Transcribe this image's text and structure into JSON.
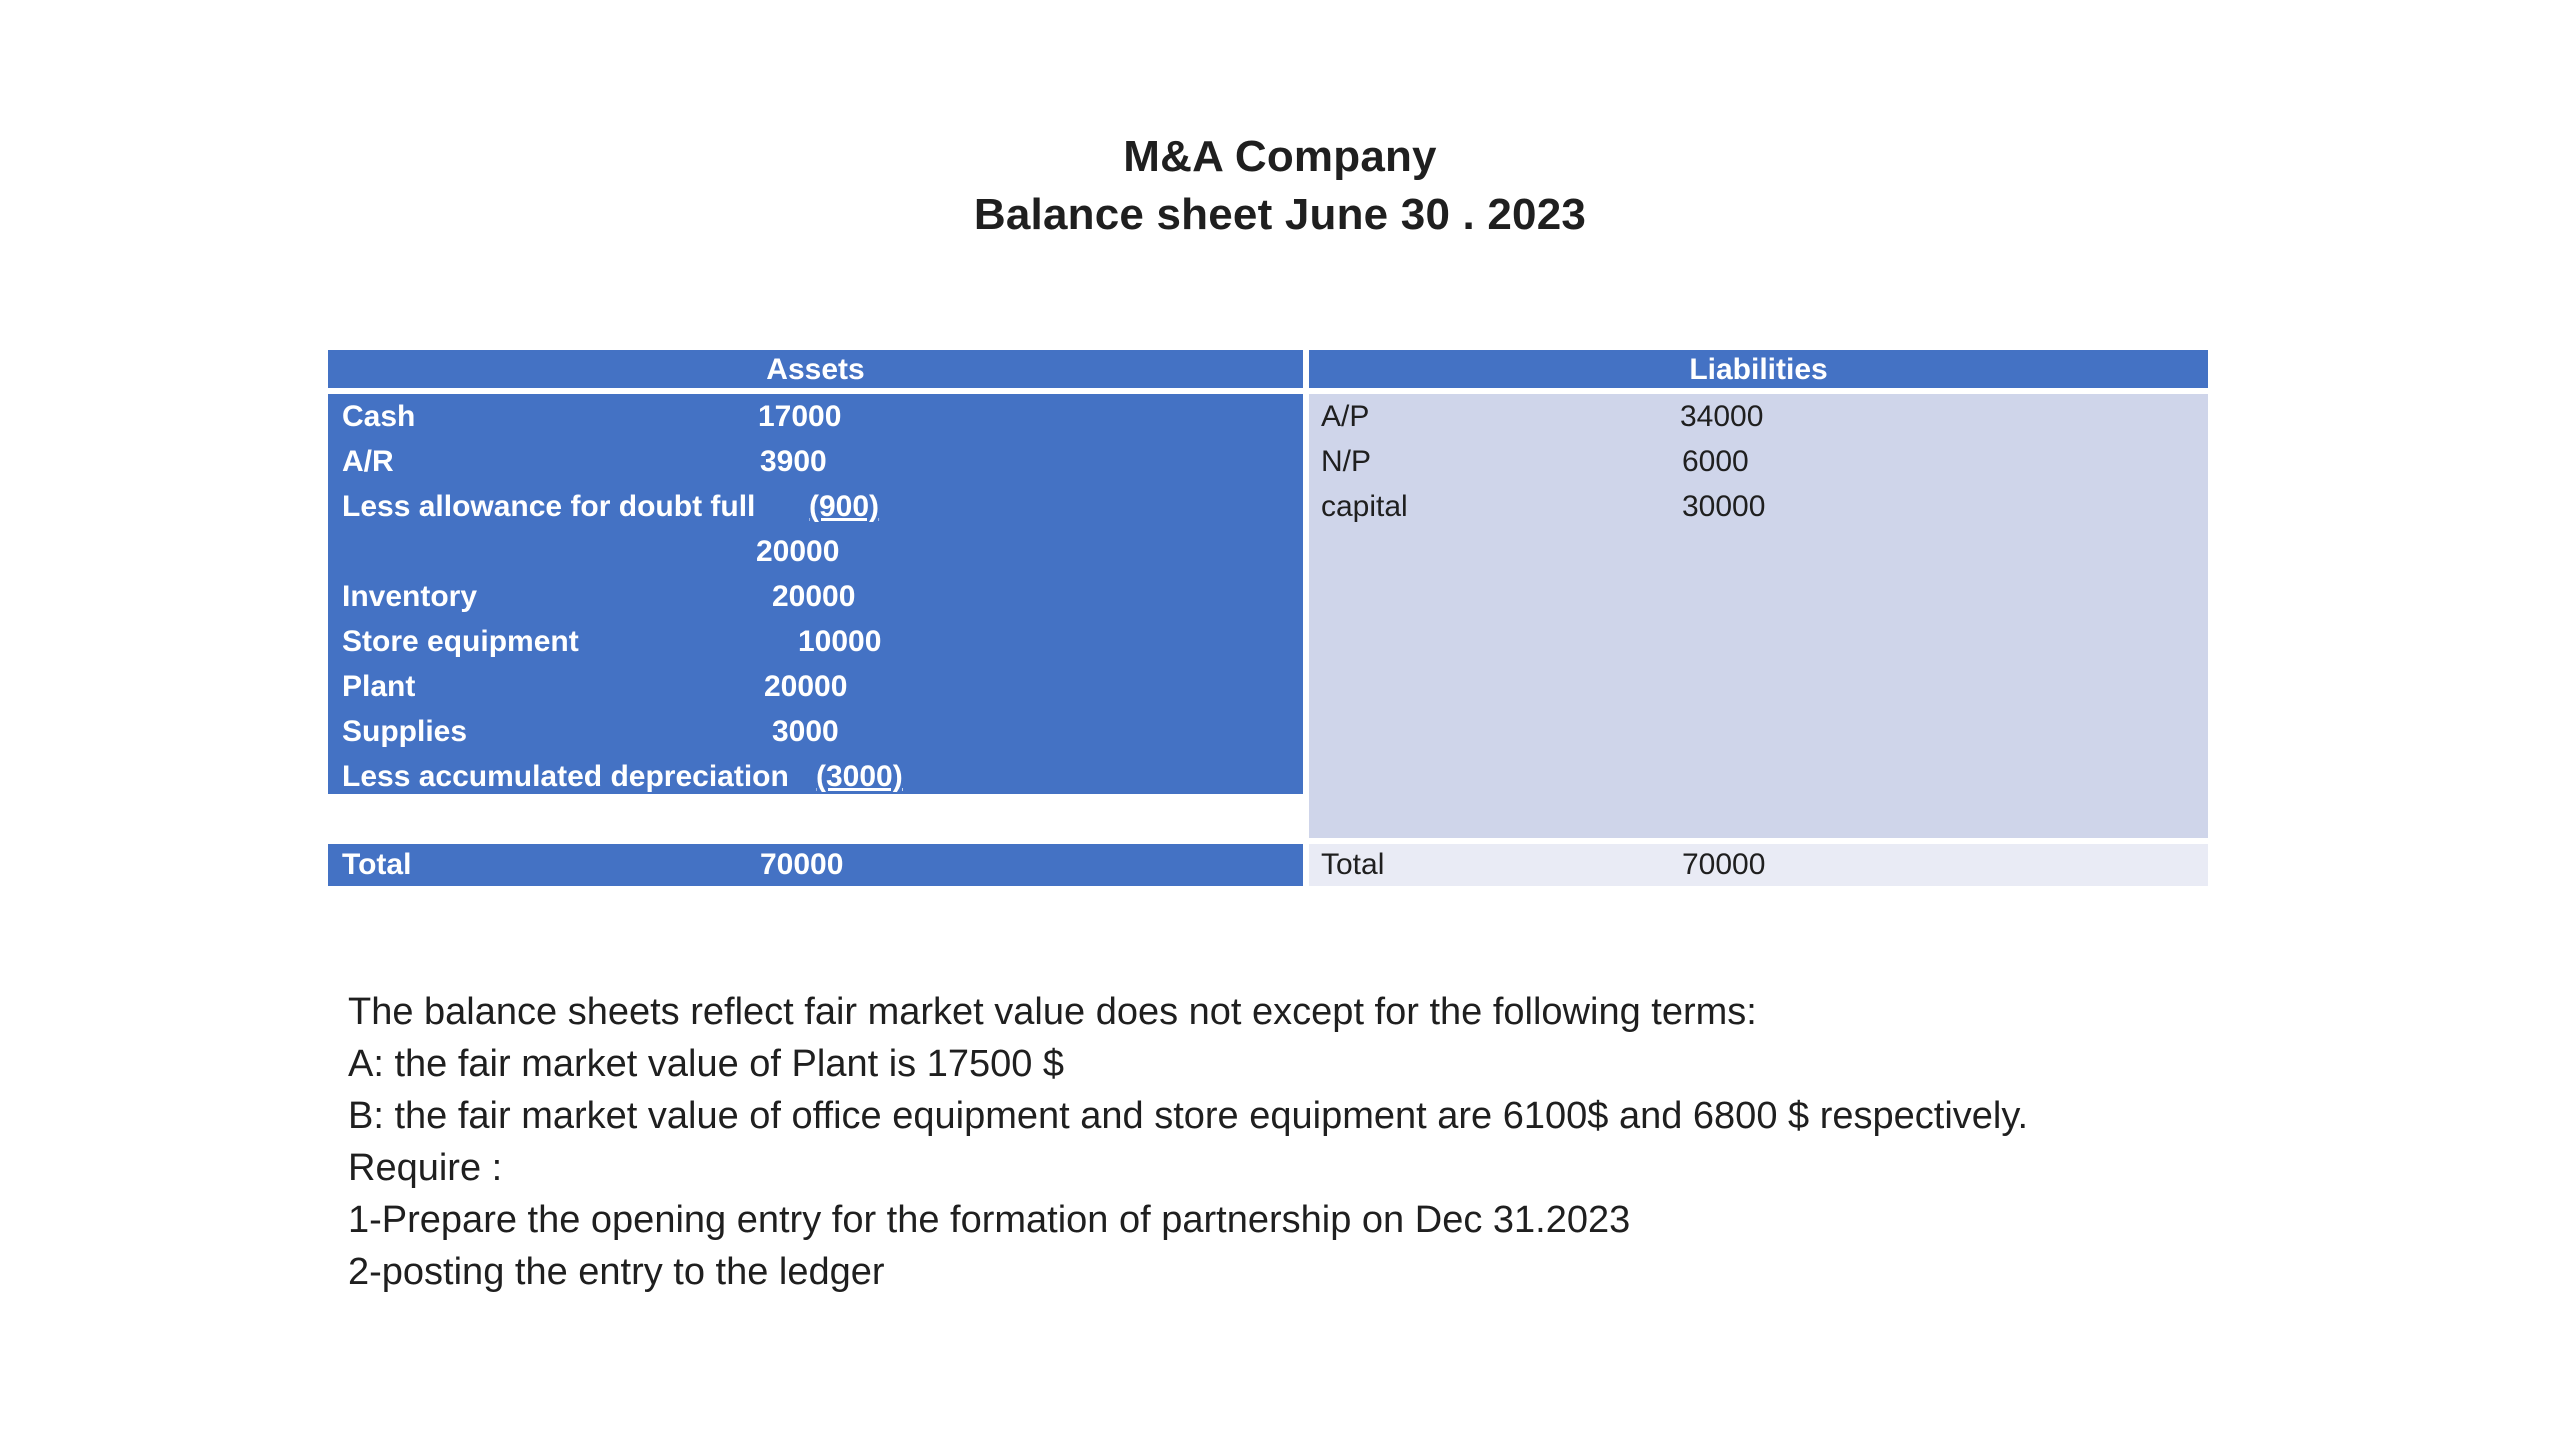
{
  "title": {
    "company": "M&A Company",
    "subtitle": "Balance sheet June 30 . 2023"
  },
  "table": {
    "assets_header": "Assets",
    "liabilities_header": "Liabilities",
    "assets": [
      {
        "label": "Cash",
        "value": "17000"
      },
      {
        "label": "A/R",
        "value": "3900"
      },
      {
        "label": "Less allowance for doubt full",
        "value": "(900)"
      },
      {
        "label": "",
        "value": "20000"
      },
      {
        "label": "Inventory",
        "value": "20000"
      },
      {
        "label": "Store equipment",
        "value": "10000"
      },
      {
        "label": "Plant",
        "value": "20000"
      },
      {
        "label": "Supplies",
        "value": "3000"
      },
      {
        "label": "Less accumulated depreciation",
        "value": "(3000)"
      },
      {
        "label": "",
        "value": "70000"
      }
    ],
    "assets_total": {
      "label": "Total",
      "value": "70000"
    },
    "liabilities": [
      {
        "label": "A/P",
        "value": "34000"
      },
      {
        "label": "N/P",
        "value": "6000"
      },
      {
        "label": "capital",
        "value": "30000"
      }
    ],
    "liabilities_total": {
      "label": "Total",
      "value": "70000"
    }
  },
  "notes": [
    "The balance sheets reflect fair market value does not except for the following terms:",
    "A: the fair market value of Plant is 17500 $",
    "B: the fair market value of office equipment and store equipment are 6100$ and 6800 $ respectively.",
    "Require :",
    "1-Prepare the opening entry for the formation of partnership on Dec 31.2023",
    "2-posting the entry to the ledger"
  ]
}
